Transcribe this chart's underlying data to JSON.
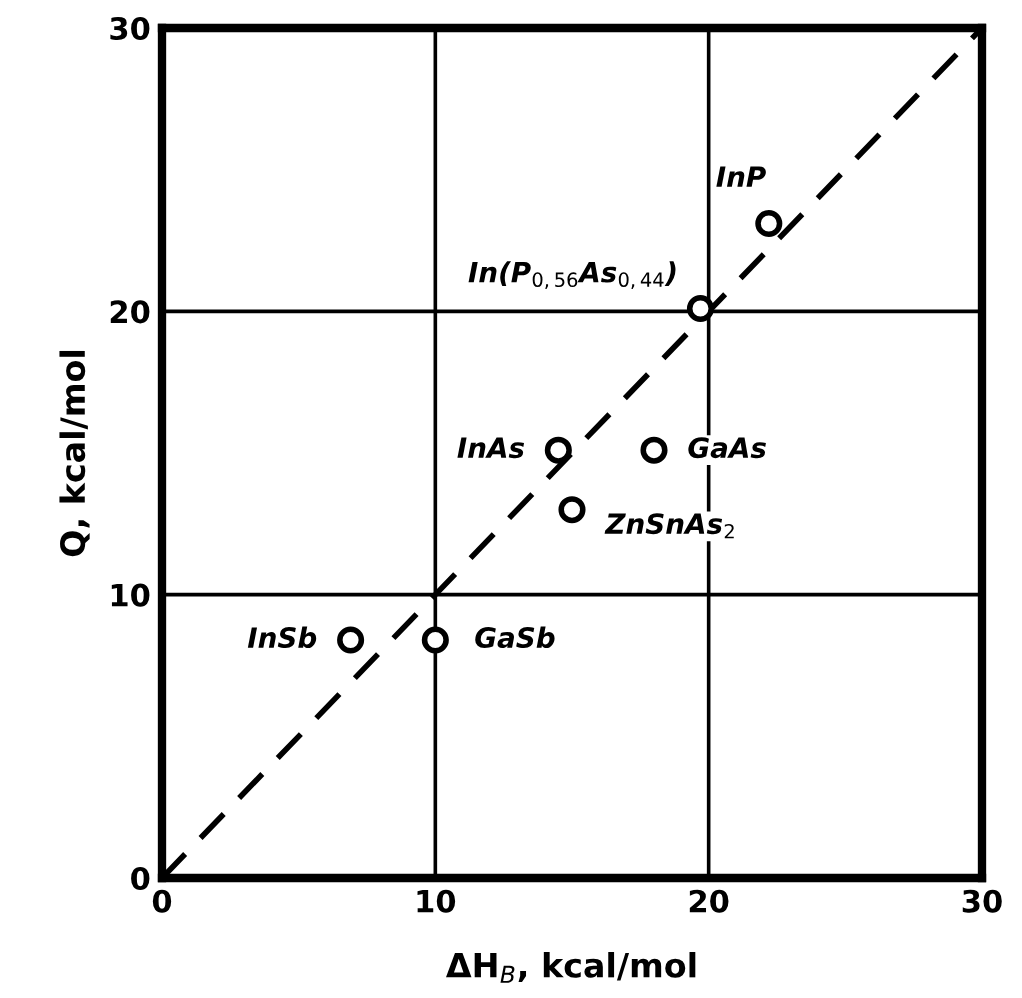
{
  "chart_data": {
    "type": "scatter",
    "xlabel": "ΔH$_{B}$, kcal/mol",
    "ylabel": "Q, kcal/mol",
    "xlim": [
      0,
      30
    ],
    "ylim": [
      0,
      30
    ],
    "xticks": [
      0,
      10,
      20,
      30
    ],
    "yticks": [
      0,
      10,
      20,
      30
    ],
    "grid": true,
    "marker": "circle",
    "series": [
      {
        "color": "#000000",
        "x": [
          22.2,
          19.7,
          14.5,
          18.0,
          15.0,
          6.9,
          10.0
        ],
        "values": [
          23.1,
          20.1,
          15.1,
          15.1,
          13.0,
          8.4,
          8.4
        ]
      },
      {
        "type": "line",
        "color": "#000000",
        "line_style": "dashed",
        "marker": "none",
        "x": [
          0,
          30
        ],
        "values": [
          0,
          30
        ]
      }
    ],
    "annotations": [
      {
        "text": "InP",
        "x": 22.2,
        "y": 23.1
      },
      {
        "text": "In(P$_{0,56}$As$_{0,44}$)",
        "x": 19.7,
        "y": 20.1
      },
      {
        "text": "InAs",
        "x": 14.5,
        "y": 15.1
      },
      {
        "text": "GaAs",
        "x": 18.0,
        "y": 15.1
      },
      {
        "text": "ZnSnAs$_{2}$",
        "x": 15.0,
        "y": 13.0
      },
      {
        "text": "InSb",
        "x": 6.9,
        "y": 8.4
      },
      {
        "text": "GaSb",
        "x": 10.0,
        "y": 8.4
      }
    ]
  }
}
